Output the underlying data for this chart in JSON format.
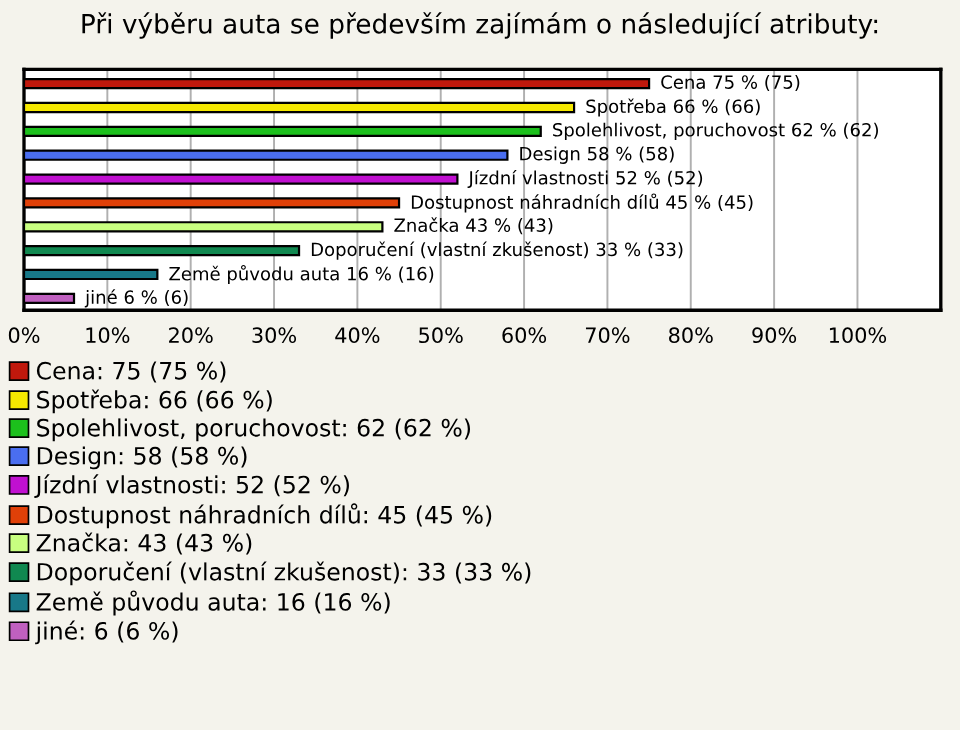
{
  "chart_data": {
    "type": "bar",
    "orientation": "horizontal",
    "title": "Při výběru auta se především zajímám o následující atributy:",
    "categories": [
      null,
      null,
      null,
      null,
      null,
      null,
      null,
      null,
      null,
      null
    ],
    "series": [
      {
        "name": "Cena: 75 (75 %)",
        "color": "#c0180c",
        "values": [
          75,
          null,
          null,
          null,
          null,
          null,
          null,
          null,
          null,
          null
        ],
        "value_labels": [
          "Cena 75 % (75)",
          null,
          null,
          null,
          null,
          null,
          null,
          null,
          null,
          null
        ]
      },
      {
        "name": "Spotřeba: 66 (66 %)",
        "color": "#f5e800",
        "values": [
          null,
          66,
          null,
          null,
          null,
          null,
          null,
          null,
          null,
          null
        ],
        "value_labels": [
          null,
          "Spotřeba 66 % (66)",
          null,
          null,
          null,
          null,
          null,
          null,
          null,
          null
        ]
      },
      {
        "name": "Spolehlivost, poruchovost: 62 (62 %)",
        "color": "#1cc01c",
        "values": [
          null,
          null,
          62,
          null,
          null,
          null,
          null,
          null,
          null,
          null
        ],
        "value_labels": [
          null,
          null,
          "Spolehlivost, poruchovost 62 % (62)",
          null,
          null,
          null,
          null,
          null,
          null,
          null
        ]
      },
      {
        "name": "Design: 58 (58 %)",
        "color": "#4a6ef0",
        "values": [
          null,
          null,
          null,
          58,
          null,
          null,
          null,
          null,
          null,
          null
        ],
        "value_labels": [
          null,
          null,
          null,
          "Design 58 % (58)",
          null,
          null,
          null,
          null,
          null,
          null
        ]
      },
      {
        "name": "Jízdní vlastnosti: 52 (52 %)",
        "color": "#c010d0",
        "values": [
          null,
          null,
          null,
          null,
          52,
          null,
          null,
          null,
          null,
          null
        ],
        "value_labels": [
          null,
          null,
          null,
          null,
          "Jízdní vlastnosti 52 % (52)",
          null,
          null,
          null,
          null,
          null
        ]
      },
      {
        "name": "Dostupnost náhradních dílů: 45 (45 %)",
        "color": "#e04008",
        "values": [
          null,
          null,
          null,
          null,
          null,
          45,
          null,
          null,
          null,
          null
        ],
        "value_labels": [
          null,
          null,
          null,
          null,
          null,
          "Dostupnost náhradních dílů 45 % (45)",
          null,
          null,
          null,
          null
        ]
      },
      {
        "name": "Značka: 43 (43 %)",
        "color": "#c8ff80",
        "values": [
          null,
          null,
          null,
          null,
          null,
          null,
          43,
          null,
          null,
          null
        ],
        "value_labels": [
          null,
          null,
          null,
          null,
          null,
          null,
          "Značka 43 % (43)",
          null,
          null,
          null
        ]
      },
      {
        "name": "Doporučení (vlastní zkušenost): 33 (33 %)",
        "color": "#108850",
        "values": [
          null,
          null,
          null,
          null,
          null,
          null,
          null,
          33,
          null,
          null
        ],
        "value_labels": [
          null,
          null,
          null,
          null,
          null,
          null,
          null,
          "Doporučení (vlastní zkušenost) 33 % (33)",
          null,
          null
        ]
      },
      {
        "name": "Země původu auta: 16 (16 %)",
        "color": "#187888",
        "values": [
          null,
          null,
          null,
          null,
          null,
          null,
          null,
          null,
          16,
          null
        ],
        "value_labels": [
          null,
          null,
          null,
          null,
          null,
          null,
          null,
          null,
          "Země původu auta 16 % (16)",
          null
        ]
      },
      {
        "name": "jiné: 6 (6 %)",
        "color": "#c060c0",
        "values": [
          null,
          null,
          null,
          null,
          null,
          null,
          null,
          null,
          null,
          6
        ],
        "value_labels": [
          null,
          null,
          null,
          null,
          null,
          null,
          null,
          null,
          null,
          "jiné 6 % (6)"
        ]
      }
    ],
    "xlim": [
      0,
      110
    ],
    "xticks": [
      {
        "value": 0,
        "label": "0%"
      },
      {
        "value": 10,
        "label": "10%"
      },
      {
        "value": 20,
        "label": "20%"
      },
      {
        "value": 30,
        "label": "30%"
      },
      {
        "value": 40,
        "label": "40%"
      },
      {
        "value": 50,
        "label": "50%"
      },
      {
        "value": 60,
        "label": "60%"
      },
      {
        "value": 70,
        "label": "70%"
      },
      {
        "value": 80,
        "label": "80%"
      },
      {
        "value": 90,
        "label": "90%"
      },
      {
        "value": 100,
        "label": "100%"
      }
    ],
    "grid": "x",
    "legend": "bottom"
  }
}
